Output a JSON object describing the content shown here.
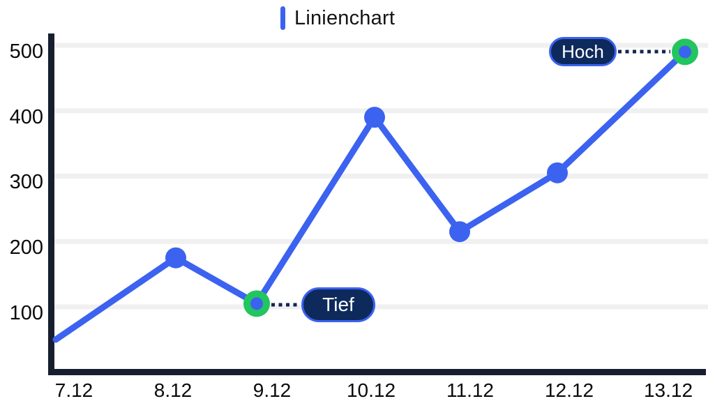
{
  "header": {
    "title": "Linienchart"
  },
  "chart_data": {
    "type": "line",
    "title": "Linienchart",
    "categories": [
      "7.12",
      "8.12",
      "9.12",
      "10.12",
      "11.12",
      "12.12",
      "13.12"
    ],
    "series": [
      {
        "name": "Linienchart",
        "values": [
          50,
          175,
          105,
          390,
          215,
          305,
          490
        ]
      }
    ],
    "y_ticks": [
      500,
      400,
      300,
      200,
      100
    ],
    "ylim": [
      0,
      520
    ],
    "grid": "horizontal-only",
    "legend_position": "top-center",
    "annotations": [
      {
        "label": "Tief",
        "category": "9.12",
        "value": 105,
        "side": "right"
      },
      {
        "label": "Hoch",
        "category": "13.12",
        "value": 490,
        "side": "left"
      }
    ],
    "colors": {
      "line": "#3C62F0",
      "point": "#3C62F0",
      "annotation_marker_ring": "#22C55E",
      "annotation_marker_center": "#3C62F0",
      "badge_fill": "#0E2A5C",
      "badge_border": "#3C62F0",
      "badge_text": "#FFFFFF",
      "axis": "#171E2F",
      "gridline": "#F0F0F1",
      "connector": "#132553",
      "label_text": "#0A0A0A",
      "title_accent": "#3C62F0"
    }
  }
}
